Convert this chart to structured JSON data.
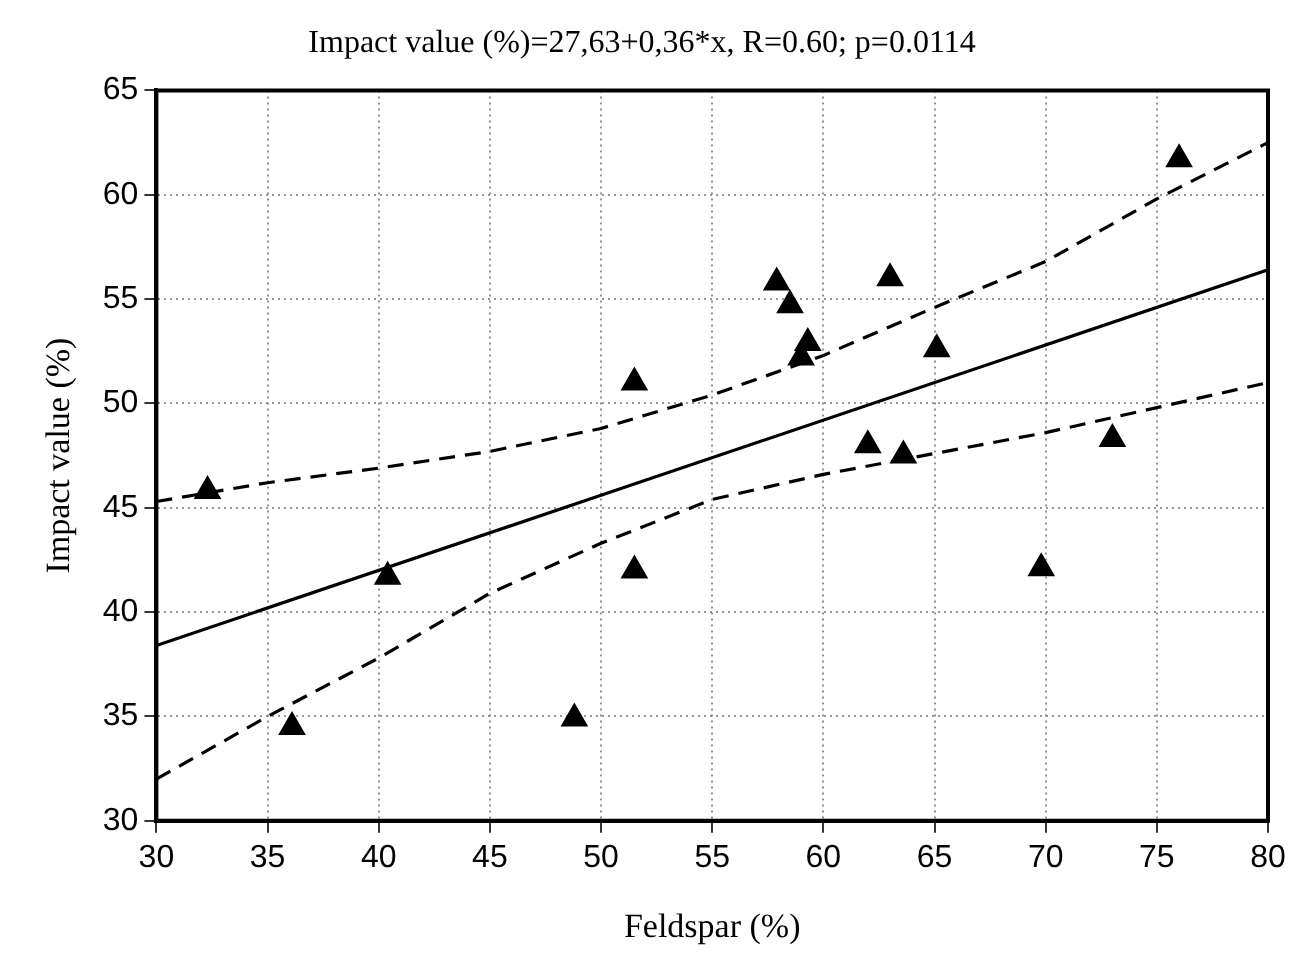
{
  "chart_data": {
    "type": "scatter",
    "title": "Impact value (%)=27,63+0,36*x, R=0.60; p=0.0114",
    "xlabel": "Feldspar (%)",
    "ylabel": "Impact value (%)",
    "xlim": [
      30,
      80
    ],
    "xticks": [
      30,
      35,
      40,
      45,
      50,
      55,
      60,
      65,
      70,
      75,
      80
    ],
    "ylim": [
      30,
      65
    ],
    "yticks": [
      30,
      35,
      40,
      45,
      50,
      55,
      60,
      65
    ],
    "grid": true,
    "marker": "triangle",
    "series": [
      {
        "color": "#000000",
        "x": [
          32.3,
          36.1,
          40.4,
          48.8,
          51.5,
          51.5,
          57.9,
          58.5,
          59.3,
          59,
          62,
          63,
          63.6,
          65.1,
          69.8,
          73,
          76
        ],
        "values": [
          45.8,
          34.5,
          41.7,
          34.9,
          51,
          42,
          55.8,
          54.7,
          52.9,
          52.2,
          48,
          56,
          47.5,
          52.6,
          42.1,
          48.3,
          61.7
        ]
      },
      {
        "type": "line",
        "color": "#000000",
        "marker": "none",
        "line_style": "solid",
        "x": [
          30,
          80
        ],
        "values": [
          38.4,
          56.4
        ]
      },
      {
        "type": "line",
        "color": "#000000",
        "marker": "none",
        "line_style": "dashed",
        "x": [
          30,
          35,
          40,
          45,
          50,
          55,
          60,
          65,
          70,
          75,
          80
        ],
        "values": [
          45.3,
          46.2,
          46.9,
          47.7,
          48.8,
          50.4,
          52.3,
          54.6,
          56.8,
          59.8,
          62.5
        ]
      },
      {
        "type": "line",
        "color": "#000000",
        "marker": "none",
        "line_style": "dashed",
        "x": [
          30,
          35,
          40,
          45,
          50,
          55,
          60,
          65,
          70,
          75,
          80
        ],
        "values": [
          32,
          35,
          37.8,
          40.9,
          43.3,
          45.4,
          46.6,
          47.6,
          48.6,
          49.8,
          51
        ]
      }
    ]
  }
}
